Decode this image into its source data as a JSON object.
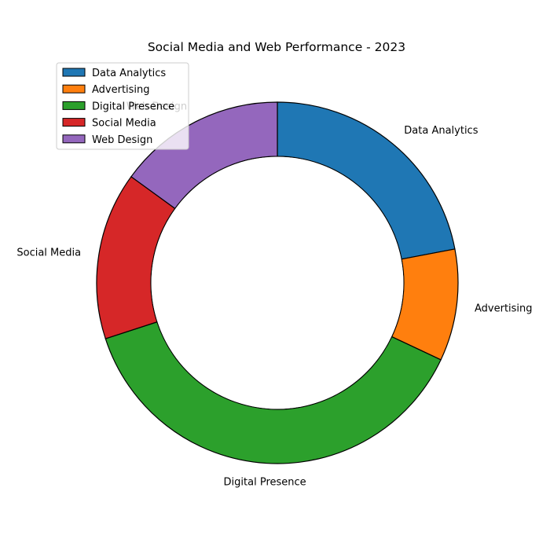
{
  "chart_data": {
    "type": "pie",
    "title": "Social Media and Web Performance - 2023",
    "categories": [
      "Data Analytics",
      "Advertising",
      "Digital Presence",
      "Social Media",
      "Web Design"
    ],
    "values": [
      22,
      10,
      38,
      15,
      15
    ],
    "colors": [
      "#1f77b4",
      "#ff7f0e",
      "#2ca02c",
      "#d62728",
      "#9467bd"
    ],
    "donut": true,
    "start_angle": "top",
    "direction": "clockwise",
    "legend_placement": "top-left"
  }
}
